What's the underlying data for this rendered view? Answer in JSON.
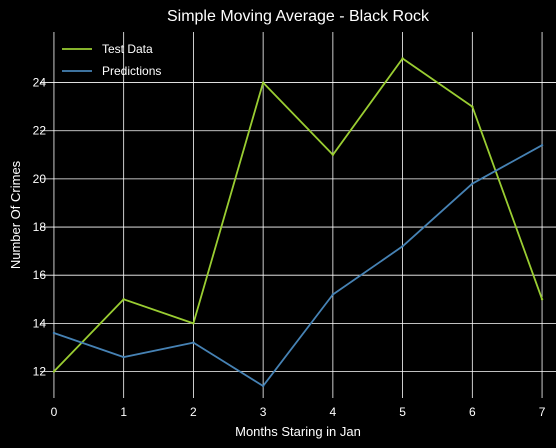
{
  "chart_data": {
    "type": "line",
    "title": "Simple Moving Average - Black Rock",
    "xlabel": "Months Staring in Jan",
    "ylabel": "Number Of Crimes",
    "x": [
      0,
      1,
      2,
      3,
      4,
      5,
      6,
      7
    ],
    "xticks": [
      "0",
      "1",
      "2",
      "3",
      "4",
      "5",
      "6",
      "7"
    ],
    "yticks": [
      "12",
      "14",
      "16",
      "18",
      "20",
      "22",
      "24"
    ],
    "xlim": [
      -0.2,
      7.2
    ],
    "ylim": [
      10.9,
      26.1
    ],
    "grid": true,
    "legend_position": "top-left",
    "background": "#000000",
    "series": [
      {
        "name": "Test Data",
        "color": "#9acd32",
        "values": [
          12,
          15,
          14,
          24,
          21,
          25,
          23,
          15
        ]
      },
      {
        "name": "Predictions",
        "color": "#4682b4",
        "values": [
          13.6,
          12.6,
          13.2,
          11.4,
          15.2,
          17.2,
          19.8,
          21.4
        ]
      }
    ]
  }
}
